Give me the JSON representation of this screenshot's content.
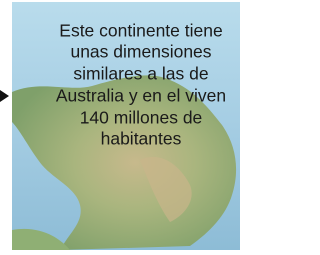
{
  "caption": {
    "lines": [
      "Este continente tiene",
      "unas dimensiones",
      "similares a las de",
      "Australia y en el viven",
      "140 millones de",
      "habitantes"
    ]
  }
}
